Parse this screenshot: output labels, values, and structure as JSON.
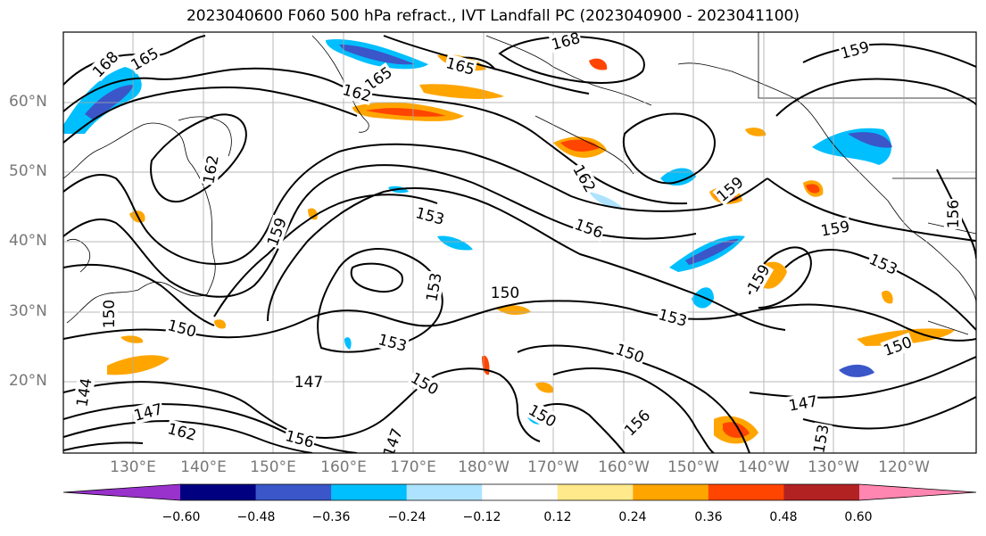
{
  "title": "2023040600 F060 500 hPa refract., IVT Landfall PC (2023040900 - 2023041100)",
  "lat_labels": [
    "60°N",
    "50°N",
    "40°N",
    "30°N",
    "20°N"
  ],
  "lon_labels": [
    "130°E",
    "140°E",
    "150°E",
    "160°E",
    "170°E",
    "180°W",
    "170°W",
    "160°W",
    "150°W",
    "140°W",
    "130°W",
    "120°W"
  ],
  "contour_labels": [
    "168",
    "165",
    "168",
    "165",
    "165",
    "162",
    "159",
    "162",
    "162",
    "159",
    "153",
    "156",
    "159",
    "159",
    "159",
    "153",
    "153",
    "150",
    "153",
    "150",
    "150",
    "153",
    "147",
    "150",
    "150",
    "150",
    "144",
    "147",
    "162",
    "156",
    "147",
    "156",
    "147",
    "153",
    "150",
    "156"
  ],
  "colorbar": {
    "colors": [
      "#9932cc",
      "#000080",
      "#3a56c8",
      "#00bfff",
      "#aee3ff",
      "#ffffff",
      "#ffe98a",
      "#ffa500",
      "#ff4500",
      "#b22222",
      "#ff86b0"
    ],
    "tick_labels": [
      "−0.60",
      "−0.48",
      "−0.36",
      "−0.24",
      "−0.12",
      "0.12",
      "0.24",
      "0.36",
      "0.48",
      "0.60"
    ]
  }
}
